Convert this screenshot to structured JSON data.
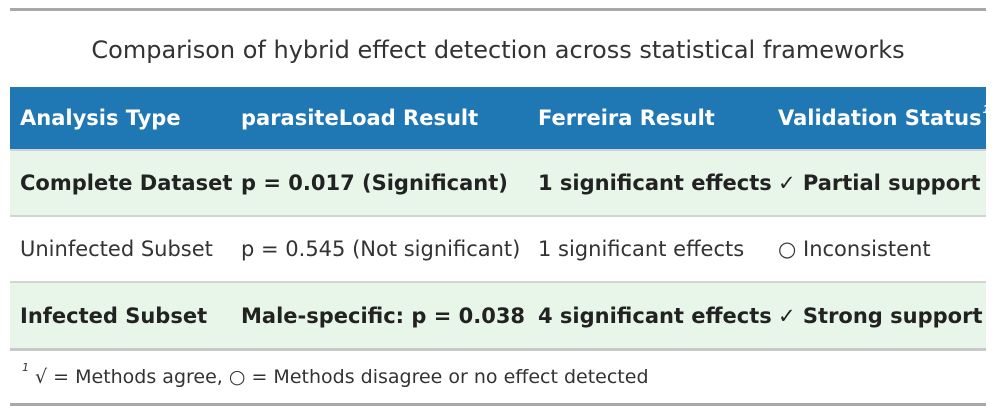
{
  "title": "Comparison of hybrid effect detection across statistical frameworks",
  "columns": [
    "Analysis Type",
    "parasiteLoad Result",
    "Ferreira Result",
    "Validation Status"
  ],
  "header_footnote_marker": "1",
  "rows": [
    [
      "Complete Dataset",
      "p = 0.017 (Significant)",
      "1 significant effects",
      "✓ Partial support"
    ],
    [
      "Uninfected Subset",
      "p = 0.545 (Not significant)",
      "1 significant effects",
      "○ Inconsistent"
    ],
    [
      "Infected Subset",
      "Male-specific: p = 0.038",
      "4 significant effects",
      "✓ Strong support"
    ]
  ],
  "footnote": {
    "marker": "1",
    "text": "√ = Methods agree, ○ = Methods disagree or no effect detected"
  },
  "colors": {
    "header_bg": "#1f77b4",
    "highlight_row_bg": "#e8f5e9"
  }
}
